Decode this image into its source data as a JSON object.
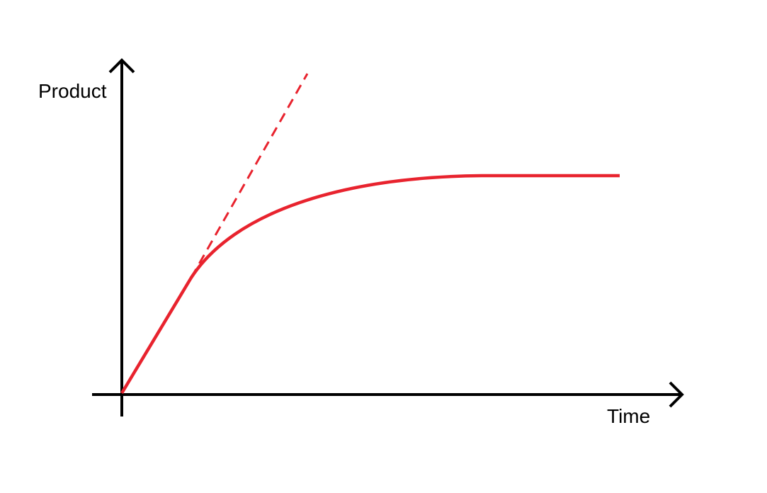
{
  "axes": {
    "y_label": "Product",
    "x_label": "Time"
  }
}
